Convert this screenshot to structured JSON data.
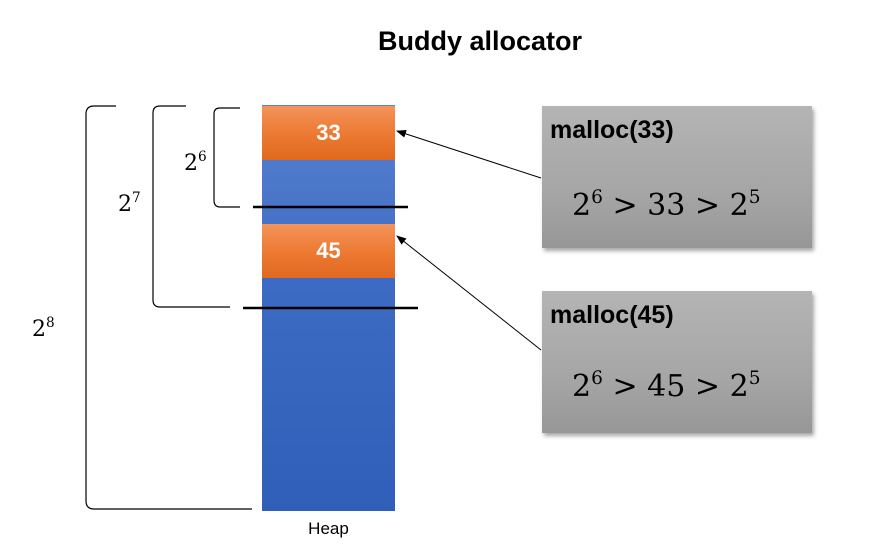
{
  "title": "Buddy allocator",
  "heap": {
    "label": "Heap",
    "blocks": [
      {
        "value": "33"
      },
      {
        "value": "45"
      }
    ]
  },
  "levels": [
    {
      "base": "2",
      "exp": "6"
    },
    {
      "base": "2",
      "exp": "7"
    },
    {
      "base": "2",
      "exp": "8"
    }
  ],
  "calls": [
    {
      "label": "malloc(33)",
      "expr": {
        "a_base": "2",
        "a_exp": "6",
        "op1": ">",
        "mid": "33",
        "op2": ">",
        "b_base": "2",
        "b_exp": "5"
      }
    },
    {
      "label": "malloc(45)",
      "expr": {
        "a_base": "2",
        "a_exp": "6",
        "op1": ">",
        "mid": "45",
        "op2": ">",
        "b_base": "2",
        "b_exp": "5"
      }
    }
  ],
  "colors": {
    "heap": "#3e6cc4",
    "block": "#ec7831",
    "box": "#a6a6a6"
  }
}
